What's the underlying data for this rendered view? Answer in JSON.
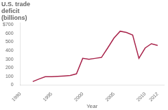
{
  "chart_data": {
    "type": "line",
    "title": "U.S. trade\ndeficit\n(billions)",
    "xlabel": "Year",
    "x": [
      1992,
      1993,
      1994,
      1995,
      1996,
      1997,
      1998,
      1999,
      2000,
      2001,
      2002,
      2003,
      2004,
      2005,
      2006,
      2007,
      2008,
      2009,
      2010,
      2011,
      2012
    ],
    "values": [
      40,
      70,
      96,
      96,
      100,
      105,
      110,
      130,
      310,
      300,
      310,
      320,
      430,
      545,
      625,
      610,
      580,
      310,
      430,
      480,
      460
    ],
    "color": "#a8234a",
    "xlim": [
      1990,
      2013
    ],
    "xticks": [
      1990,
      1995,
      2000,
      2005,
      2010,
      2012
    ],
    "ylim": [
      0,
      720
    ],
    "yticks": [
      0,
      100,
      200,
      300,
      400,
      500,
      600,
      {
        "value": 700,
        "label": "$700"
      }
    ],
    "grid": false
  }
}
